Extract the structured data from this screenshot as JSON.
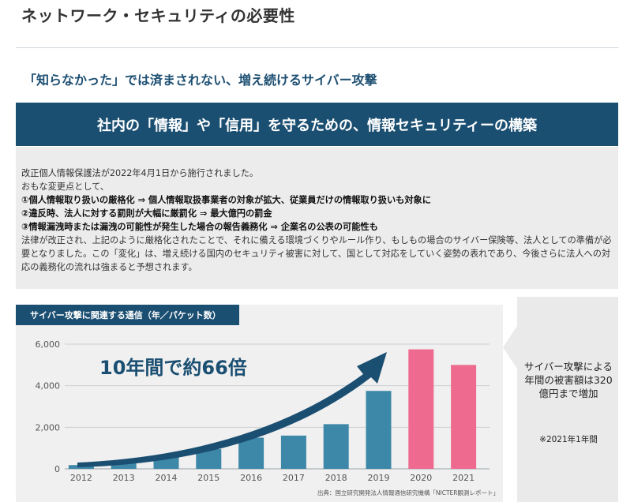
{
  "page": {
    "title": "ネットワーク・セキュリティの必要性",
    "subtitle": "「知らなかった」では済まされない、増え続けるサイバー攻撃",
    "banner": "社内の「情報」や「信用」を守るための、情報セキュリティーの構築"
  },
  "info": {
    "lines": [
      "改正個人情報保護法が2022年4月1日から施行されました。",
      "おもな変更点として、",
      "①個人情報取り扱いの厳格化  ⇒  個人情報取扱事業者の対象が拡大、従業員だけの情報取り扱いも対象に",
      "②違反時、法人に対する罰則が大幅に厳罰化  ⇒  最大億円の罰金",
      "③情報漏洩時または漏洩の可能性が発生した場合の報告義務化  ⇒  企業名の公表の可能性も",
      "法律が改正され、上記のように厳格化されたことで、それに備える環境づくりやルール作り、もしもの場合のサイバー保険等、法人としての準備が必要となりました。この「変化」は、増え続ける国内のセキュリティ被害に対して、国として対応をしていく姿勢の表れであり、今後さらに法人への対応の義務化の流れは強まると予想されます。"
    ]
  },
  "side": {
    "text": "サイバー攻撃による年間の被害額は320億円まで増加",
    "note": "※2021年1年間"
  },
  "colors": {
    "navy": "#1b4f72",
    "bar_blue": "#3d87a8",
    "bar_pink": "#ee6b8f"
  },
  "chart_data": {
    "type": "bar",
    "title": "サイバー攻撃に関連する通信（年／パケット数）",
    "categories": [
      "2012",
      "2013",
      "2014",
      "2015",
      "2016",
      "2017",
      "2018",
      "2019",
      "2020",
      "2021"
    ],
    "values": [
      180,
      350,
      550,
      950,
      1500,
      1600,
      2150,
      3750,
      5750,
      5000
    ],
    "highlight": [
      false,
      false,
      false,
      false,
      false,
      false,
      false,
      false,
      true,
      true
    ],
    "ylim": [
      0,
      6000
    ],
    "yticks": [
      "0",
      "2,000",
      "4,000",
      "6,000"
    ],
    "annotation": "10年間で約66倍",
    "source": "出典：国立研究開発法人情報通信研究機構「NICTER観測レポート」",
    "grid": true
  }
}
